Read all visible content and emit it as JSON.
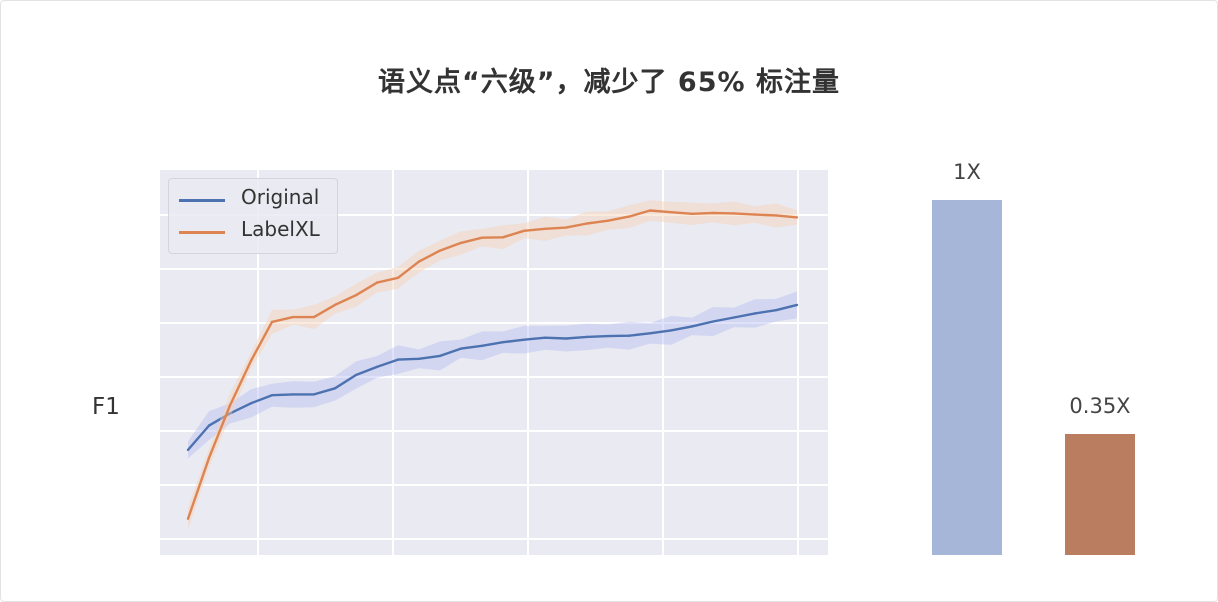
{
  "title": "语义点“六级”，减少了 65% 标注量",
  "chart_data": [
    {
      "type": "line",
      "ylabel": "F1",
      "legend_placement": "top-left",
      "grid": true,
      "series": [
        {
          "name": "Original",
          "color": "#4c72b0",
          "values": [
            0.12,
            0.18,
            0.21,
            0.235,
            0.255,
            0.257,
            0.257,
            0.272,
            0.305,
            0.325,
            0.343,
            0.345,
            0.352,
            0.37,
            0.377,
            0.386,
            0.392,
            0.397,
            0.395,
            0.399,
            0.401,
            0.402,
            0.408,
            0.415,
            0.425,
            0.437,
            0.447,
            0.457,
            0.465,
            0.478
          ]
        },
        {
          "name": "LabelXL",
          "color": "#dd8452",
          "values": [
            -0.05,
            0.1,
            0.23,
            0.34,
            0.436,
            0.448,
            0.448,
            0.478,
            0.502,
            0.533,
            0.545,
            0.585,
            0.612,
            0.631,
            0.644,
            0.645,
            0.661,
            0.666,
            0.669,
            0.679,
            0.686,
            0.696,
            0.711,
            0.707,
            0.703,
            0.705,
            0.704,
            0.701,
            0.699,
            0.694
          ]
        }
      ]
    },
    {
      "type": "bar",
      "categories": [
        "Original",
        "LabelXL"
      ],
      "values": [
        1.0,
        0.35
      ],
      "data_labels": [
        "1X",
        "0.35X"
      ],
      "colors": [
        "#a6b6d8",
        "#bb7d60"
      ]
    }
  ]
}
